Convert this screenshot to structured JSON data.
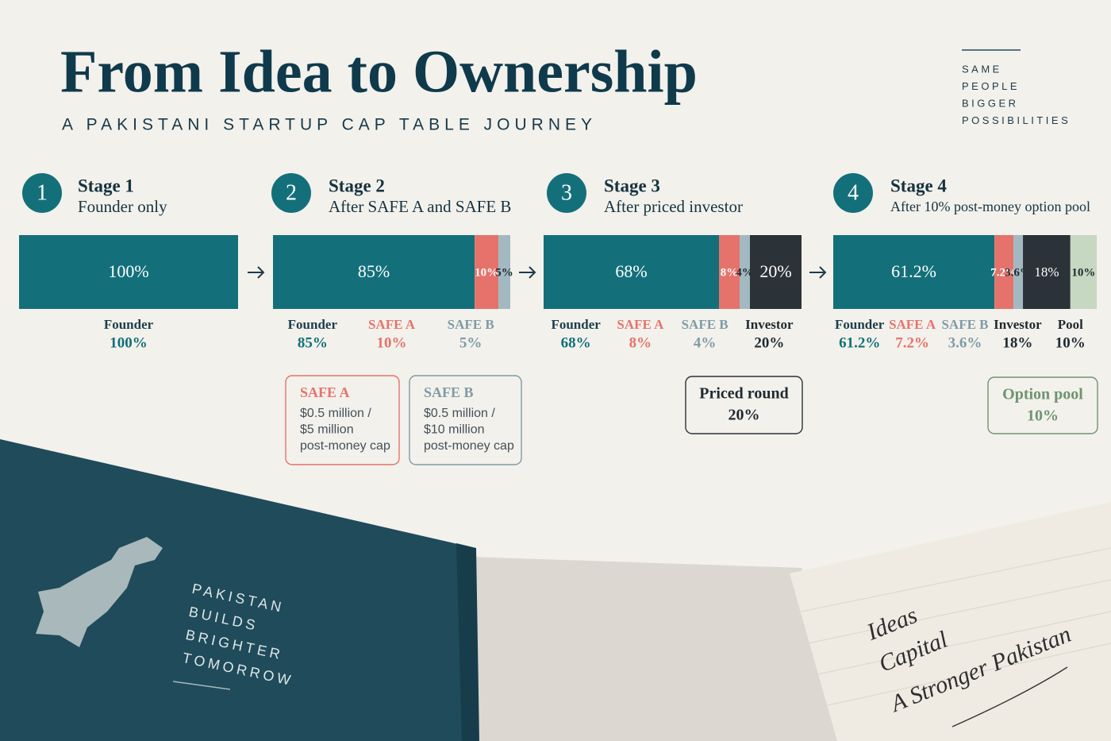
{
  "header": {
    "title": "From Idea to Ownership",
    "subtitle": "A PAKISTANI STARTUP CAP TABLE JOURNEY",
    "tagline": [
      "SAME",
      "PEOPLE",
      "BIGGER",
      "POSSIBILITIES"
    ]
  },
  "chart_data": [
    {
      "type": "stacked_bar",
      "step": "1",
      "title": "Stage 1",
      "subtitle": "Founder only",
      "series": [
        {
          "name": "Founder",
          "color": "#13707a",
          "text_color": "#1d3f4c",
          "values": [
            100
          ],
          "value_labels": [
            "100%"
          ]
        }
      ],
      "annotations": []
    },
    {
      "type": "stacked_bar",
      "step": "2",
      "title": "Stage 2",
      "subtitle": "After SAFE A and SAFE B",
      "series": [
        {
          "name": "Founder",
          "color": "#13707a",
          "text_color": "#1d3f4c",
          "values": [
            85
          ],
          "value_labels": [
            "85%"
          ]
        },
        {
          "name": "SAFE A",
          "color": "#e5736b",
          "text_color": "#e5736b",
          "values": [
            10
          ],
          "value_labels": [
            "10%"
          ]
        },
        {
          "name": "SAFE B",
          "color": "#a3b9c2",
          "text_color": "#7f9ba6",
          "values": [
            5
          ],
          "value_labels": [
            "5%"
          ]
        }
      ],
      "annotations": [
        {
          "title": "SAFE A",
          "lines": [
            "$0.5 million /",
            "$5 million",
            "post-money cap"
          ],
          "color": "#e5736b"
        },
        {
          "title": "SAFE B",
          "lines": [
            "$0.5 million /",
            "$10 million",
            "post-money cap"
          ],
          "color": "#7f9ba6"
        }
      ]
    },
    {
      "type": "stacked_bar",
      "step": "3",
      "title": "Stage 3",
      "subtitle": "After priced investor",
      "series": [
        {
          "name": "Founder",
          "color": "#13707a",
          "text_color": "#1d3f4c",
          "values": [
            68
          ],
          "value_labels": [
            "68%"
          ]
        },
        {
          "name": "SAFE A",
          "color": "#e5736b",
          "text_color": "#e5736b",
          "values": [
            8
          ],
          "value_labels": [
            "8%"
          ]
        },
        {
          "name": "SAFE B",
          "color": "#a3b9c2",
          "text_color": "#7f9ba6",
          "values": [
            4
          ],
          "value_labels": [
            "4%"
          ]
        },
        {
          "name": "Investor",
          "color": "#2b3338",
          "text_color": "#1f2a30",
          "values": [
            20
          ],
          "value_labels": [
            "20%"
          ]
        }
      ],
      "annotations": [
        {
          "title": "Priced round",
          "lines": [
            "20%"
          ],
          "color": "#2b3338"
        }
      ]
    },
    {
      "type": "stacked_bar",
      "step": "4",
      "title": "Stage 4",
      "subtitle": "After 10% post-money option pool",
      "series": [
        {
          "name": "Founder",
          "color": "#13707a",
          "text_color": "#1d3f4c",
          "values": [
            61.2
          ],
          "value_labels": [
            "61.2%"
          ]
        },
        {
          "name": "SAFE A",
          "color": "#e5736b",
          "text_color": "#e5736b",
          "values": [
            7.2
          ],
          "value_labels": [
            "7.2%"
          ]
        },
        {
          "name": "SAFE B",
          "color": "#a3b9c2",
          "text_color": "#7f9ba6",
          "values": [
            3.6
          ],
          "value_labels": [
            "3.6%"
          ]
        },
        {
          "name": "Investor",
          "color": "#2b3338",
          "text_color": "#1f2a30",
          "values": [
            18
          ],
          "value_labels": [
            "18%"
          ]
        },
        {
          "name": "Pool",
          "color": "#c6d8c1",
          "text_color": "#1f2a30",
          "values": [
            10
          ],
          "value_labels": [
            "10%"
          ]
        }
      ],
      "annotations": [
        {
          "title": "Option pool",
          "lines": [
            "10%"
          ],
          "color": "#6f9470"
        }
      ]
    }
  ],
  "book": [
    "PAKISTAN",
    "BUILDS",
    "BRIGHTER",
    "TOMORROW"
  ],
  "notebook": [
    "Ideas",
    "Capital",
    "A Stronger Pakistan"
  ]
}
